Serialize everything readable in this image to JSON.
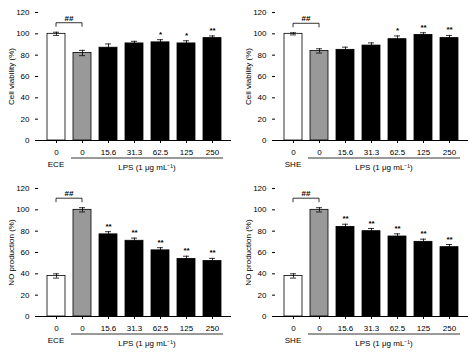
{
  "chart_data": [
    {
      "type": "bar",
      "ylabel": "Cell viability (%)",
      "xlabel": "LPS (1 μg mL⁻¹)",
      "categories": [
        "0",
        "0",
        "15.6",
        "31.3",
        "62.5",
        "125",
        "250"
      ],
      "values": [
        100,
        82,
        87,
        91,
        92,
        91,
        96
      ],
      "errors": [
        1.5,
        2.5,
        3.5,
        2.0,
        2.5,
        2.5,
        2.0
      ],
      "colors": [
        "#ffffff",
        "#999999",
        "#000000",
        "#000000",
        "#000000",
        "#000000",
        "#000000"
      ],
      "significance": [
        null,
        null,
        null,
        null,
        "*",
        "*",
        "**"
      ],
      "annotations": [
        {
          "text": "ECE",
          "category": 0
        },
        {
          "text": "##",
          "categories": [
            0,
            1
          ]
        }
      ],
      "ylim": [
        0,
        120
      ],
      "yticks": [
        0,
        20,
        40,
        60,
        80,
        100,
        120
      ]
    },
    {
      "type": "bar",
      "ylabel": "Cell viability (%)",
      "xlabel": "LPS (1 μg mL⁻¹)",
      "categories": [
        "0",
        "0",
        "15.6",
        "31.3",
        "62.5",
        "125",
        "250"
      ],
      "values": [
        100,
        84,
        85,
        89,
        95,
        99,
        96
      ],
      "errors": [
        1.0,
        2.0,
        2.5,
        2.5,
        3.0,
        2.0,
        2.5
      ],
      "colors": [
        "#ffffff",
        "#999999",
        "#000000",
        "#000000",
        "#000000",
        "#000000",
        "#000000"
      ],
      "significance": [
        null,
        null,
        null,
        null,
        "*",
        "**",
        "**"
      ],
      "annotations": [
        {
          "text": "SHE",
          "category": 0
        },
        {
          "text": "##",
          "categories": [
            0,
            1
          ]
        }
      ],
      "ylim": [
        0,
        120
      ],
      "yticks": [
        0,
        20,
        40,
        60,
        80,
        100,
        120
      ]
    },
    {
      "type": "bar",
      "ylabel": "NO production (%)",
      "xlabel": "LPS (1 μg mL⁻¹)",
      "categories": [
        "0",
        "0",
        "15.6",
        "31.3",
        "62.5",
        "125",
        "250"
      ],
      "values": [
        38,
        100,
        77,
        71,
        62,
        54,
        52
      ],
      "errors": [
        2.0,
        2.0,
        2.5,
        2.5,
        2.5,
        2.5,
        2.5
      ],
      "colors": [
        "#ffffff",
        "#999999",
        "#000000",
        "#000000",
        "#000000",
        "#000000",
        "#000000"
      ],
      "significance": [
        null,
        null,
        "**",
        "**",
        "**",
        "**",
        "**"
      ],
      "annotations": [
        {
          "text": "ECE",
          "category": 0
        },
        {
          "text": "##",
          "categories": [
            0,
            1
          ]
        }
      ],
      "ylim": [
        0,
        120
      ],
      "yticks": [
        0,
        20,
        40,
        60,
        80,
        100,
        120
      ]
    },
    {
      "type": "bar",
      "ylabel": "NO production (%)",
      "xlabel": "LPS (1 μg mL⁻¹)",
      "categories": [
        "0",
        "0",
        "15.6",
        "31.3",
        "62.5",
        "125",
        "250"
      ],
      "values": [
        38,
        100,
        84,
        80,
        75,
        70,
        65
      ],
      "errors": [
        2.0,
        2.0,
        2.5,
        2.5,
        2.5,
        2.5,
        2.5
      ],
      "colors": [
        "#ffffff",
        "#999999",
        "#000000",
        "#000000",
        "#000000",
        "#000000",
        "#000000"
      ],
      "significance": [
        null,
        null,
        "**",
        "**",
        "**",
        "**",
        "**"
      ],
      "annotations": [
        {
          "text": "SHE",
          "category": 0
        },
        {
          "text": "##",
          "categories": [
            0,
            1
          ]
        }
      ],
      "ylim": [
        0,
        120
      ],
      "yticks": [
        0,
        20,
        40,
        60,
        80,
        100,
        120
      ]
    }
  ]
}
